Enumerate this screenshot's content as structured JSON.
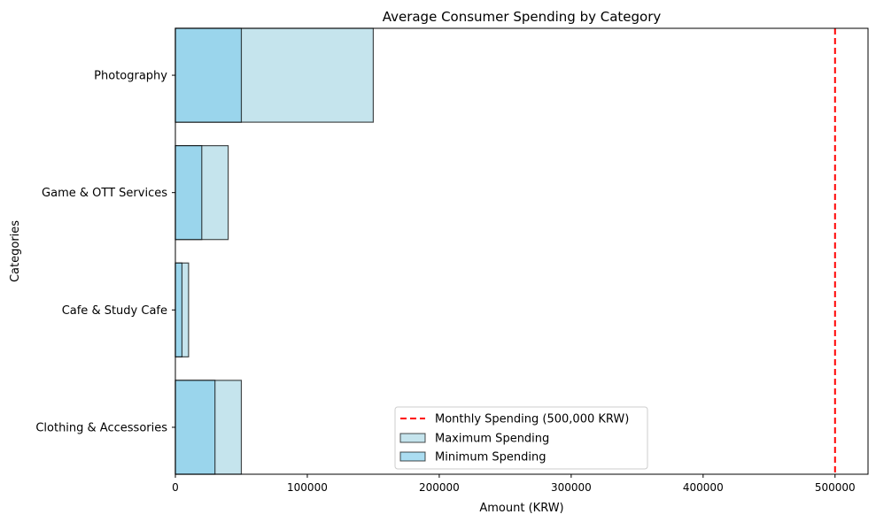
{
  "chart_data": {
    "type": "bar",
    "orientation": "horizontal",
    "title": "Average Consumer Spending by Category",
    "xlabel": "Amount (KRW)",
    "ylabel": "Categories",
    "categories": [
      "Clothing & Accessories",
      "Cafe & Study Cafe",
      "Game & OTT Services",
      "Photography"
    ],
    "series": [
      {
        "name": "Maximum Spending",
        "values": [
          50000,
          10000,
          40000,
          150000
        ],
        "color": "#add8e6"
      },
      {
        "name": "Minimum Spending",
        "values": [
          30000,
          5000,
          20000,
          50000
        ],
        "color": "#87ceeb"
      }
    ],
    "reference_line": {
      "value": 500000,
      "label": "Monthly Spending (500,000 KRW)",
      "color": "#ff0000",
      "style": "dashed"
    },
    "xlim": [
      0,
      525000
    ],
    "xticks": [
      0,
      100000,
      200000,
      300000,
      400000,
      500000
    ],
    "xtick_labels": [
      "0",
      "100000",
      "200000",
      "300000",
      "400000",
      "500000"
    ],
    "grid": false,
    "legend_position": "lower-center",
    "legend": [
      {
        "label": "Monthly Spending (500,000 KRW)",
        "kind": "line"
      },
      {
        "label": "Maximum Spending",
        "kind": "patch"
      },
      {
        "label": "Minimum Spending",
        "kind": "patch"
      }
    ]
  }
}
